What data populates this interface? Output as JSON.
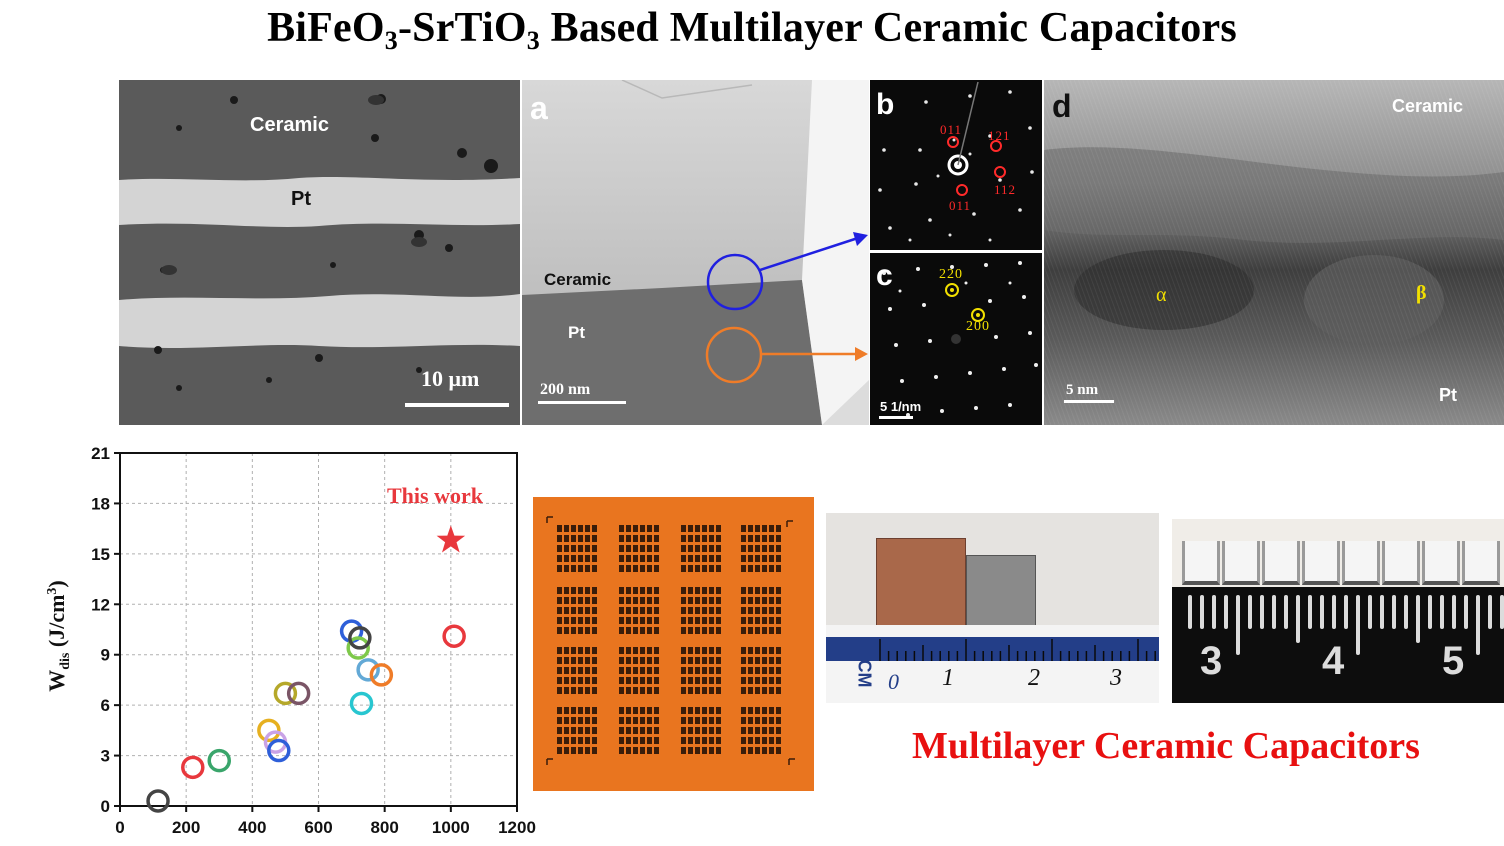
{
  "title": {
    "prefix": "BiFeO",
    "sub1": "3",
    "mid": "-SrTiO",
    "sub2": "3",
    "suffix": " Based Multilayer Ceramic Capacitors"
  },
  "sem": {
    "ceramic_label": "Ceramic",
    "pt_label": "Pt",
    "scale_bar": "10 μm"
  },
  "tem_a": {
    "letter": "a",
    "ceramic_label": "Ceramic",
    "pt_label": "Pt",
    "scale_bar": "200 nm"
  },
  "saed_b": {
    "letter": "b",
    "idx_tl": "011",
    "idx_tr": "121",
    "idx_r": "112",
    "idx_bottom": "011"
  },
  "saed_c": {
    "letter": "c",
    "idx_top": "220",
    "idx_mid": "200",
    "scale_bar": "5 1/nm"
  },
  "hrtem_d": {
    "letter": "d",
    "ceramic_label": "Ceramic",
    "alpha_label": "α",
    "beta_label": "β",
    "pt_label": "Pt",
    "scale_bar": "5 nm"
  },
  "chart_data": {
    "type": "scatter",
    "ylabel": "W_dis (J/cm³)",
    "xlabel": "",
    "xlim": [
      0,
      1200
    ],
    "ylim": [
      0,
      21
    ],
    "x_ticks": [
      0,
      200,
      400,
      600,
      800,
      1000,
      1200
    ],
    "y_ticks": [
      0,
      3,
      6,
      9,
      12,
      15,
      18,
      21
    ],
    "grid": true,
    "annotation": "This work",
    "this_work": {
      "x": 1000,
      "y": 15.8,
      "color": "#e8383d"
    },
    "points": [
      {
        "x": 115,
        "y": 0.3,
        "color": "#444444"
      },
      {
        "x": 220,
        "y": 2.3,
        "color": "#e8383d"
      },
      {
        "x": 300,
        "y": 2.7,
        "color": "#3aa56b"
      },
      {
        "x": 450,
        "y": 4.5,
        "color": "#e6b020"
      },
      {
        "x": 470,
        "y": 3.8,
        "color": "#c9a2e6"
      },
      {
        "x": 480,
        "y": 3.3,
        "color": "#2e5fd9"
      },
      {
        "x": 500,
        "y": 6.7,
        "color": "#b5a82a"
      },
      {
        "x": 540,
        "y": 6.7,
        "color": "#7a5566"
      },
      {
        "x": 700,
        "y": 10.4,
        "color": "#2e5fd9"
      },
      {
        "x": 720,
        "y": 9.4,
        "color": "#7ec94a"
      },
      {
        "x": 725,
        "y": 10.0,
        "color": "#444444"
      },
      {
        "x": 730,
        "y": 6.1,
        "color": "#28c6d0"
      },
      {
        "x": 750,
        "y": 8.1,
        "color": "#63a9d6"
      },
      {
        "x": 790,
        "y": 7.8,
        "color": "#ef7c28"
      },
      {
        "x": 1010,
        "y": 10.1,
        "color": "#e8383d"
      }
    ]
  },
  "mlcc_caption": "Multilayer Ceramic Capacitors",
  "ruler1": {
    "label": "CM",
    "numbers": [
      "0",
      "1",
      "2",
      "3"
    ]
  },
  "ruler2": {
    "numbers": [
      "3",
      "4",
      "5"
    ]
  },
  "colors": {
    "orange_arrow": "#ef7c28",
    "blue_arrow": "#2020e0",
    "mlcc_red": "#e81010",
    "substrate_orange": "#e9751f"
  }
}
